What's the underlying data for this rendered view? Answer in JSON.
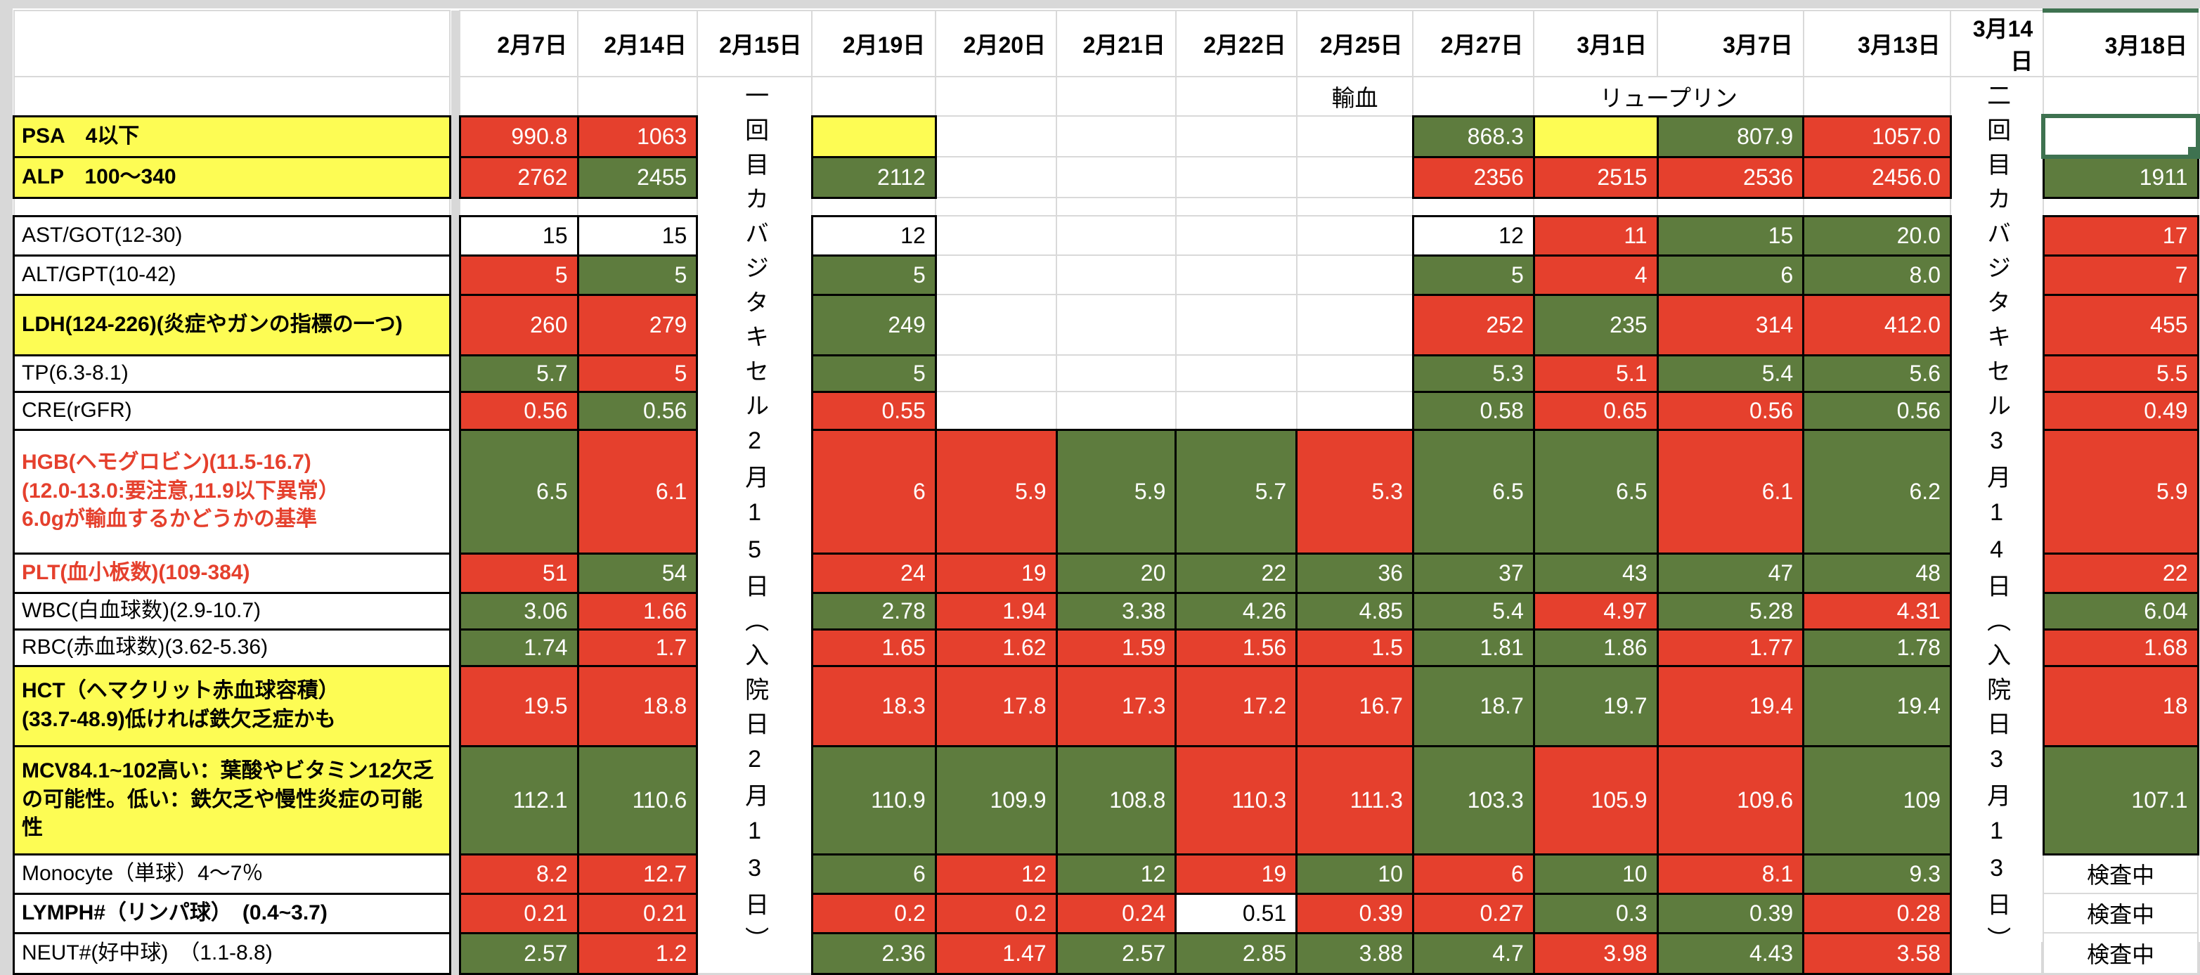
{
  "colors": {
    "abnormal_red": "#e5402d",
    "normal_green": "#5e7c3e",
    "highlight_yellow": "#fdfc54",
    "selection_green": "#3e7250",
    "gridline_gray": "#d9d9d9"
  },
  "table": {
    "dates": [
      "2月7日",
      "2月14日",
      "2月15日",
      "2月19日",
      "2月20日",
      "2月21日",
      "2月22日",
      "2月25日",
      "2月27日",
      "3月1日",
      "3月7日",
      "3月13日",
      "3月14日",
      "3月18日"
    ],
    "subheader": {
      "transfusion": "輸血",
      "leuprolide": "リュープリン"
    },
    "vertical_columns": [
      {
        "date": "2月15日",
        "text": "一回目カバジタキセル2月15日︵入院日2月13日︶"
      },
      {
        "date": "3月14日",
        "text": "二回目カバジタキセル3月14日︵入院日3月13日︶"
      }
    ],
    "rows": [
      {
        "label": "PSA　4以下",
        "label_style": "yellow",
        "cells": [
          {
            "v": "990.8",
            "s": "r"
          },
          {
            "v": "1063",
            "s": "r"
          },
          {
            "v": "",
            "s": "y"
          },
          {
            "v": "",
            "s": "e"
          },
          {
            "v": "",
            "s": "e"
          },
          {
            "v": "",
            "s": "e"
          },
          {
            "v": "",
            "s": "e"
          },
          {
            "v": "868.3",
            "s": "g"
          },
          {
            "v": "",
            "s": "y"
          },
          {
            "v": "807.9",
            "s": "g"
          },
          {
            "v": "1057.0",
            "s": "r"
          },
          {
            "v": "",
            "s": "sel"
          }
        ]
      },
      {
        "label": "ALP　100〜340",
        "label_style": "yellow",
        "cells": [
          {
            "v": "2762",
            "s": "r"
          },
          {
            "v": "2455",
            "s": "g"
          },
          {
            "v": "2112",
            "s": "g"
          },
          {
            "v": "",
            "s": "e"
          },
          {
            "v": "",
            "s": "e"
          },
          {
            "v": "",
            "s": "e"
          },
          {
            "v": "",
            "s": "e"
          },
          {
            "v": "2356",
            "s": "r"
          },
          {
            "v": "2515",
            "s": "r"
          },
          {
            "v": "2536",
            "s": "r"
          },
          {
            "v": "2456.0",
            "s": "r"
          },
          {
            "v": "1911",
            "s": "g"
          }
        ]
      },
      {
        "label": "",
        "label_style": "spacer",
        "cells": [
          {
            "v": "",
            "s": "e"
          },
          {
            "v": "",
            "s": "e"
          },
          {
            "v": "",
            "s": "e"
          },
          {
            "v": "",
            "s": "e"
          },
          {
            "v": "",
            "s": "e"
          },
          {
            "v": "",
            "s": "e"
          },
          {
            "v": "",
            "s": "e"
          },
          {
            "v": "",
            "s": "e"
          },
          {
            "v": "",
            "s": "e"
          },
          {
            "v": "",
            "s": "e"
          },
          {
            "v": "",
            "s": "e"
          },
          {
            "v": "",
            "s": "e"
          }
        ]
      },
      {
        "label": "AST/GOT(12-30)",
        "label_style": "plain",
        "cells": [
          {
            "v": "15",
            "s": "w"
          },
          {
            "v": "15",
            "s": "w"
          },
          {
            "v": "12",
            "s": "w"
          },
          {
            "v": "",
            "s": "e"
          },
          {
            "v": "",
            "s": "e"
          },
          {
            "v": "",
            "s": "e"
          },
          {
            "v": "",
            "s": "e"
          },
          {
            "v": "12",
            "s": "w"
          },
          {
            "v": "11",
            "s": "r"
          },
          {
            "v": "15",
            "s": "g"
          },
          {
            "v": "20.0",
            "s": "g"
          },
          {
            "v": "17",
            "s": "r"
          }
        ]
      },
      {
        "label": "ALT/GPT(10-42)",
        "label_style": "plain",
        "cells": [
          {
            "v": "5",
            "s": "r"
          },
          {
            "v": "5",
            "s": "g"
          },
          {
            "v": "5",
            "s": "g"
          },
          {
            "v": "",
            "s": "e"
          },
          {
            "v": "",
            "s": "e"
          },
          {
            "v": "",
            "s": "e"
          },
          {
            "v": "",
            "s": "e"
          },
          {
            "v": "5",
            "s": "g"
          },
          {
            "v": "4",
            "s": "r"
          },
          {
            "v": "6",
            "s": "g"
          },
          {
            "v": "8.0",
            "s": "g"
          },
          {
            "v": "7",
            "s": "r"
          }
        ]
      },
      {
        "label": "LDH(124-226)(炎症やガンの指標の一つ)",
        "label_style": "yellow",
        "cells": [
          {
            "v": "260",
            "s": "r"
          },
          {
            "v": "279",
            "s": "r"
          },
          {
            "v": "249",
            "s": "g"
          },
          {
            "v": "",
            "s": "e"
          },
          {
            "v": "",
            "s": "e"
          },
          {
            "v": "",
            "s": "e"
          },
          {
            "v": "",
            "s": "e"
          },
          {
            "v": "252",
            "s": "r"
          },
          {
            "v": "235",
            "s": "g"
          },
          {
            "v": "314",
            "s": "r"
          },
          {
            "v": "412.0",
            "s": "r"
          },
          {
            "v": "455",
            "s": "r"
          }
        ]
      },
      {
        "label": "TP(6.3-8.1)",
        "label_style": "plain",
        "cells": [
          {
            "v": "5.7",
            "s": "g"
          },
          {
            "v": "5",
            "s": "r"
          },
          {
            "v": "5",
            "s": "g"
          },
          {
            "v": "",
            "s": "e"
          },
          {
            "v": "",
            "s": "e"
          },
          {
            "v": "",
            "s": "e"
          },
          {
            "v": "",
            "s": "e"
          },
          {
            "v": "5.3",
            "s": "g"
          },
          {
            "v": "5.1",
            "s": "r"
          },
          {
            "v": "5.4",
            "s": "g"
          },
          {
            "v": "5.6",
            "s": "g"
          },
          {
            "v": "5.5",
            "s": "r"
          }
        ]
      },
      {
        "label": "CRE(rGFR)",
        "label_style": "plain",
        "cells": [
          {
            "v": "0.56",
            "s": "r"
          },
          {
            "v": "0.56",
            "s": "g"
          },
          {
            "v": "0.55",
            "s": "r"
          },
          {
            "v": "",
            "s": "e"
          },
          {
            "v": "",
            "s": "e"
          },
          {
            "v": "",
            "s": "e"
          },
          {
            "v": "",
            "s": "e"
          },
          {
            "v": "0.58",
            "s": "g"
          },
          {
            "v": "0.65",
            "s": "r"
          },
          {
            "v": "0.56",
            "s": "r"
          },
          {
            "v": "0.56",
            "s": "g"
          },
          {
            "v": "0.49",
            "s": "r"
          }
        ]
      },
      {
        "label": "HGB(ヘモグロビン)(11.5-16.7)\n(12.0-13.0:要注意,11.9以下異常）\n6.0gが輸血するかどうかの基準",
        "label_style": "red",
        "cells": [
          {
            "v": "6.5",
            "s": "g"
          },
          {
            "v": "6.1",
            "s": "r"
          },
          {
            "v": "6",
            "s": "r"
          },
          {
            "v": "5.9",
            "s": "r"
          },
          {
            "v": "5.9",
            "s": "g"
          },
          {
            "v": "5.7",
            "s": "g"
          },
          {
            "v": "5.3",
            "s": "r"
          },
          {
            "v": "6.5",
            "s": "g"
          },
          {
            "v": "6.5",
            "s": "g"
          },
          {
            "v": "6.1",
            "s": "r"
          },
          {
            "v": "6.2",
            "s": "g"
          },
          {
            "v": "5.9",
            "s": "r"
          }
        ]
      },
      {
        "label": "PLT(血小板数)(109-384)",
        "label_style": "red",
        "cells": [
          {
            "v": "51",
            "s": "r"
          },
          {
            "v": "54",
            "s": "g"
          },
          {
            "v": "24",
            "s": "r"
          },
          {
            "v": "19",
            "s": "r"
          },
          {
            "v": "20",
            "s": "g"
          },
          {
            "v": "22",
            "s": "g"
          },
          {
            "v": "36",
            "s": "g"
          },
          {
            "v": "37",
            "s": "g"
          },
          {
            "v": "43",
            "s": "g"
          },
          {
            "v": "47",
            "s": "g"
          },
          {
            "v": "48",
            "s": "g"
          },
          {
            "v": "22",
            "s": "r"
          }
        ]
      },
      {
        "label": "WBC(白血球数)(2.9-10.7)",
        "label_style": "plain",
        "cells": [
          {
            "v": "3.06",
            "s": "g"
          },
          {
            "v": "1.66",
            "s": "r"
          },
          {
            "v": "2.78",
            "s": "g"
          },
          {
            "v": "1.94",
            "s": "r"
          },
          {
            "v": "3.38",
            "s": "g"
          },
          {
            "v": "4.26",
            "s": "g"
          },
          {
            "v": "4.85",
            "s": "g"
          },
          {
            "v": "5.4",
            "s": "g"
          },
          {
            "v": "4.97",
            "s": "r"
          },
          {
            "v": "5.28",
            "s": "g"
          },
          {
            "v": "4.31",
            "s": "r"
          },
          {
            "v": "6.04",
            "s": "g"
          }
        ]
      },
      {
        "label": "RBC(赤血球数)(3.62-5.36)",
        "label_style": "plain",
        "cells": [
          {
            "v": "1.74",
            "s": "g"
          },
          {
            "v": "1.7",
            "s": "r"
          },
          {
            "v": "1.65",
            "s": "r"
          },
          {
            "v": "1.62",
            "s": "r"
          },
          {
            "v": "1.59",
            "s": "r"
          },
          {
            "v": "1.56",
            "s": "r"
          },
          {
            "v": "1.5",
            "s": "r"
          },
          {
            "v": "1.81",
            "s": "g"
          },
          {
            "v": "1.86",
            "s": "g"
          },
          {
            "v": "1.77",
            "s": "r"
          },
          {
            "v": "1.78",
            "s": "g"
          },
          {
            "v": "1.68",
            "s": "r"
          }
        ]
      },
      {
        "label": "HCT（ヘマクリット赤血球容積）\n(33.7-48.9)低ければ鉄欠乏症かも",
        "label_style": "yellow",
        "cells": [
          {
            "v": "19.5",
            "s": "r"
          },
          {
            "v": "18.8",
            "s": "r"
          },
          {
            "v": "18.3",
            "s": "r"
          },
          {
            "v": "17.8",
            "s": "r"
          },
          {
            "v": "17.3",
            "s": "r"
          },
          {
            "v": "17.2",
            "s": "r"
          },
          {
            "v": "16.7",
            "s": "r"
          },
          {
            "v": "18.7",
            "s": "g"
          },
          {
            "v": "19.7",
            "s": "g"
          },
          {
            "v": "19.4",
            "s": "r"
          },
          {
            "v": "19.4",
            "s": "g"
          },
          {
            "v": "18",
            "s": "r"
          }
        ]
      },
      {
        "label": "MCV84.1~102高い：葉酸やビタミン12欠乏の可能性。低い：鉄欠乏や慢性炎症の可能性",
        "label_style": "yellow",
        "cells": [
          {
            "v": "112.1",
            "s": "g"
          },
          {
            "v": "110.6",
            "s": "g"
          },
          {
            "v": "110.9",
            "s": "g"
          },
          {
            "v": "109.9",
            "s": "g"
          },
          {
            "v": "108.8",
            "s": "g"
          },
          {
            "v": "110.3",
            "s": "r"
          },
          {
            "v": "111.3",
            "s": "r"
          },
          {
            "v": "103.3",
            "s": "g"
          },
          {
            "v": "105.9",
            "s": "r"
          },
          {
            "v": "109.6",
            "s": "r"
          },
          {
            "v": "109",
            "s": "g"
          },
          {
            "v": "107.1",
            "s": "g"
          }
        ]
      },
      {
        "label": "Monocyte（単球）4〜7％",
        "label_style": "plain",
        "cells": [
          {
            "v": "8.2",
            "s": "r"
          },
          {
            "v": "12.7",
            "s": "r"
          },
          {
            "v": "6",
            "s": "g"
          },
          {
            "v": "12",
            "s": "r"
          },
          {
            "v": "12",
            "s": "g"
          },
          {
            "v": "19",
            "s": "r"
          },
          {
            "v": "10",
            "s": "g"
          },
          {
            "v": "6",
            "s": "r"
          },
          {
            "v": "10",
            "s": "g"
          },
          {
            "v": "8.1",
            "s": "r"
          },
          {
            "v": "9.3",
            "s": "g"
          },
          {
            "v": "検査中",
            "s": "p"
          }
        ]
      },
      {
        "label": "LYMPH#（リンパ球）　(0.4~3.7)",
        "label_style": "bold",
        "cells": [
          {
            "v": "0.21",
            "s": "r"
          },
          {
            "v": "0.21",
            "s": "r"
          },
          {
            "v": "0.2",
            "s": "r"
          },
          {
            "v": "0.2",
            "s": "r"
          },
          {
            "v": "0.24",
            "s": "r"
          },
          {
            "v": "0.51",
            "s": "w"
          },
          {
            "v": "0.39",
            "s": "r"
          },
          {
            "v": "0.27",
            "s": "r"
          },
          {
            "v": "0.3",
            "s": "g"
          },
          {
            "v": "0.39",
            "s": "g"
          },
          {
            "v": "0.28",
            "s": "r"
          },
          {
            "v": "検査中",
            "s": "p"
          }
        ]
      },
      {
        "label": "NEUT#(好中球)　（1.1-8.8)",
        "label_style": "plain",
        "cells": [
          {
            "v": "2.57",
            "s": "g"
          },
          {
            "v": "1.2",
            "s": "r"
          },
          {
            "v": "2.36",
            "s": "g"
          },
          {
            "v": "1.47",
            "s": "r"
          },
          {
            "v": "2.57",
            "s": "g"
          },
          {
            "v": "2.85",
            "s": "g"
          },
          {
            "v": "3.88",
            "s": "g"
          },
          {
            "v": "4.7",
            "s": "g"
          },
          {
            "v": "3.98",
            "s": "r"
          },
          {
            "v": "4.43",
            "s": "g"
          },
          {
            "v": "3.58",
            "s": "r"
          },
          {
            "v": "検査中",
            "s": "p"
          }
        ]
      }
    ]
  }
}
